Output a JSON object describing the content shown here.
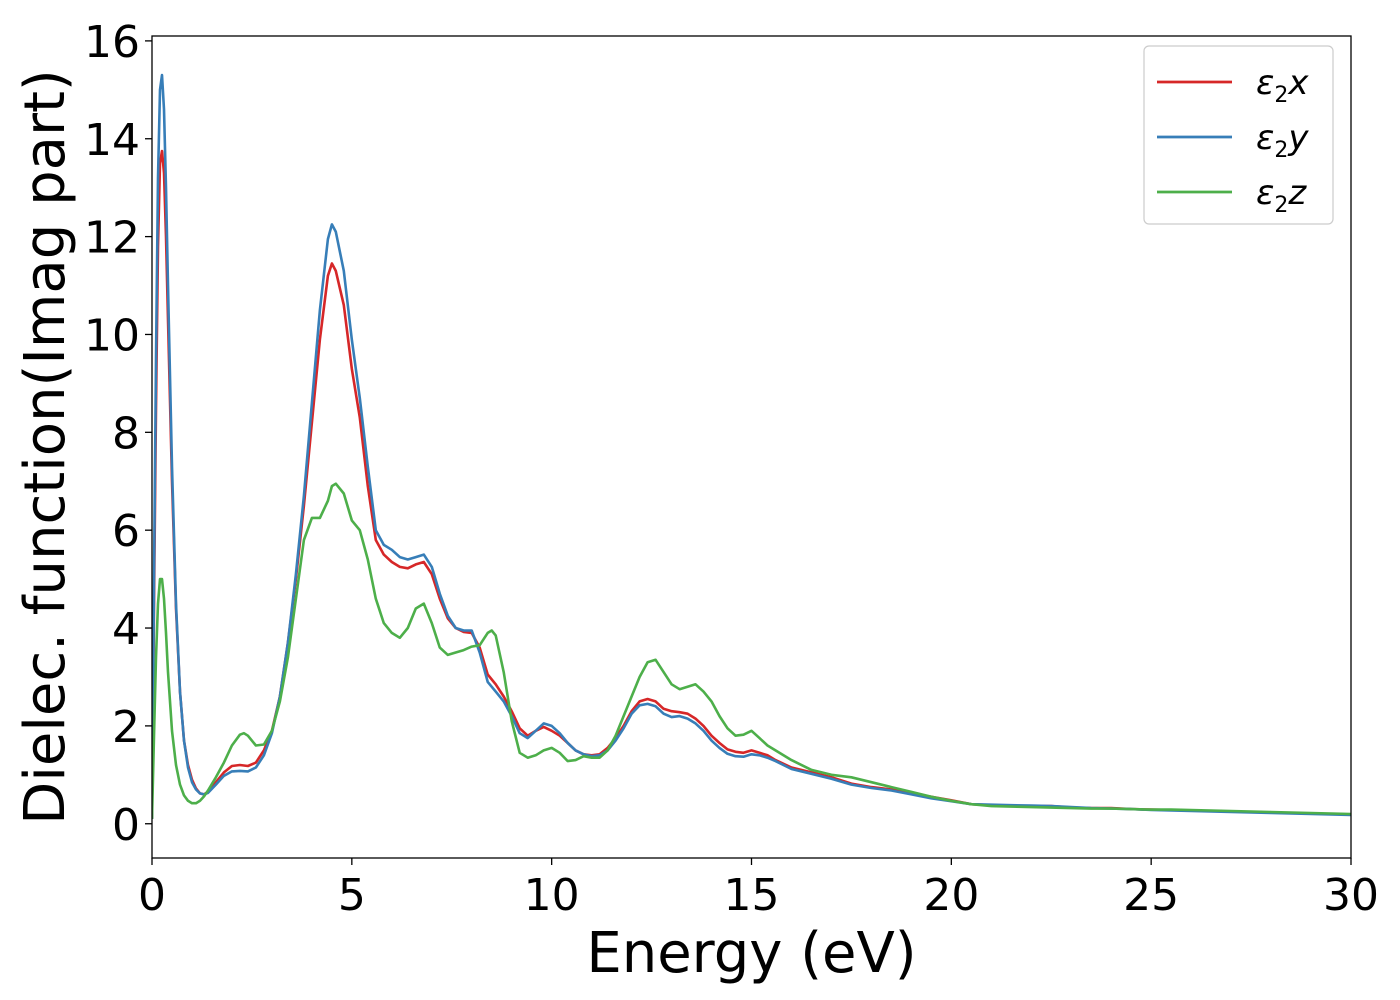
{
  "chart_data": {
    "type": "line",
    "title": "",
    "xlabel": "Energy (eV)",
    "ylabel": "Dielec. function(Imag part)",
    "xlim": [
      0,
      30
    ],
    "ylim": [
      -0.7,
      16.1
    ],
    "xticks": [
      0,
      5,
      10,
      15,
      20,
      25,
      30
    ],
    "yticks": [
      0,
      2,
      4,
      6,
      8,
      10,
      12,
      14,
      16
    ],
    "grid": false,
    "legend": "top-right",
    "series": [
      {
        "name": "ε2x",
        "name_base": "ε",
        "name_sub": "2",
        "name_tail": "x",
        "color": "#d62728",
        "x": [
          0,
          0.05,
          0.1,
          0.15,
          0.2,
          0.25,
          0.3,
          0.35,
          0.4,
          0.5,
          0.6,
          0.7,
          0.8,
          0.9,
          1.0,
          1.1,
          1.2,
          1.3,
          1.4,
          1.6,
          1.8,
          2.0,
          2.2,
          2.4,
          2.6,
          2.8,
          3.0,
          3.2,
          3.4,
          3.6,
          3.8,
          4.0,
          4.2,
          4.4,
          4.5,
          4.6,
          4.8,
          5.0,
          5.2,
          5.4,
          5.6,
          5.8,
          6.0,
          6.2,
          6.4,
          6.6,
          6.8,
          7.0,
          7.2,
          7.4,
          7.6,
          7.8,
          8.0,
          8.2,
          8.4,
          8.6,
          8.8,
          9.0,
          9.2,
          9.4,
          9.6,
          9.8,
          10.0,
          10.2,
          10.4,
          10.6,
          10.8,
          11.0,
          11.2,
          11.4,
          11.6,
          11.8,
          12.0,
          12.2,
          12.4,
          12.6,
          12.8,
          13.0,
          13.2,
          13.4,
          13.6,
          13.8,
          14.0,
          14.2,
          14.4,
          14.6,
          14.8,
          15.0,
          15.2,
          15.4,
          15.6,
          16.0,
          16.5,
          17.0,
          17.5,
          18.0,
          18.5,
          19.0,
          19.5,
          20.0,
          20.5,
          21.0,
          21.5,
          22.0,
          22.5,
          23.0,
          23.5,
          24.0,
          24.5,
          25.0,
          25.5,
          26.0,
          26.5,
          27.0,
          27.5,
          28.0,
          28.5,
          29.0,
          29.5,
          30.0
        ],
        "y": [
          0.1,
          4.5,
          8.5,
          11.8,
          13.5,
          13.75,
          13.3,
          12.0,
          10.3,
          7.0,
          4.4,
          2.7,
          1.7,
          1.2,
          0.9,
          0.72,
          0.62,
          0.6,
          0.65,
          0.85,
          1.05,
          1.18,
          1.2,
          1.18,
          1.25,
          1.5,
          1.9,
          2.6,
          3.7,
          5.0,
          6.5,
          8.2,
          9.9,
          11.2,
          11.45,
          11.3,
          10.6,
          9.3,
          8.3,
          6.9,
          5.8,
          5.5,
          5.35,
          5.25,
          5.22,
          5.3,
          5.35,
          5.1,
          4.6,
          4.2,
          4.0,
          3.92,
          3.9,
          3.6,
          3.05,
          2.85,
          2.6,
          2.3,
          1.95,
          1.8,
          1.9,
          1.98,
          1.9,
          1.8,
          1.65,
          1.5,
          1.42,
          1.4,
          1.42,
          1.55,
          1.75,
          2.0,
          2.3,
          2.5,
          2.55,
          2.5,
          2.35,
          2.3,
          2.28,
          2.25,
          2.15,
          2.0,
          1.8,
          1.65,
          1.52,
          1.47,
          1.45,
          1.5,
          1.45,
          1.4,
          1.3,
          1.15,
          1.05,
          0.95,
          0.82,
          0.75,
          0.7,
          0.62,
          0.55,
          0.48,
          0.4,
          0.38,
          0.37,
          0.36,
          0.36,
          0.33,
          0.32,
          0.32,
          0.3,
          0.29,
          0.28,
          0.27,
          0.26,
          0.25,
          0.24,
          0.23,
          0.22,
          0.21,
          0.2,
          0.19
        ]
      },
      {
        "name": "ε2y",
        "name_base": "ε",
        "name_sub": "2",
        "name_tail": "y",
        "color": "#377eb8",
        "x": [
          0,
          0.05,
          0.1,
          0.15,
          0.2,
          0.25,
          0.3,
          0.35,
          0.4,
          0.5,
          0.6,
          0.7,
          0.8,
          0.9,
          1.0,
          1.1,
          1.2,
          1.3,
          1.4,
          1.6,
          1.8,
          2.0,
          2.2,
          2.4,
          2.6,
          2.8,
          3.0,
          3.2,
          3.4,
          3.6,
          3.8,
          4.0,
          4.2,
          4.4,
          4.5,
          4.6,
          4.8,
          5.0,
          5.2,
          5.4,
          5.6,
          5.8,
          6.0,
          6.2,
          6.4,
          6.6,
          6.8,
          7.0,
          7.2,
          7.4,
          7.6,
          7.8,
          8.0,
          8.2,
          8.4,
          8.6,
          8.8,
          9.0,
          9.2,
          9.4,
          9.6,
          9.8,
          10.0,
          10.2,
          10.4,
          10.6,
          10.8,
          11.0,
          11.2,
          11.4,
          11.6,
          11.8,
          12.0,
          12.2,
          12.4,
          12.6,
          12.8,
          13.0,
          13.2,
          13.4,
          13.6,
          13.8,
          14.0,
          14.2,
          14.4,
          14.6,
          14.8,
          15.0,
          15.2,
          15.4,
          15.6,
          16.0,
          16.5,
          17.0,
          17.5,
          18.0,
          18.5,
          19.0,
          19.5,
          20.0,
          20.5,
          21.0,
          21.5,
          22.0,
          22.5,
          23.0,
          23.5,
          24.0,
          24.5,
          25.0,
          25.5,
          26.0,
          26.5,
          27.0,
          27.5,
          28.0,
          28.5,
          29.0,
          29.5,
          30.0
        ],
        "y": [
          0.1,
          5.0,
          9.5,
          13.2,
          15.0,
          15.3,
          14.6,
          13.0,
          11.0,
          7.3,
          4.5,
          2.7,
          1.7,
          1.15,
          0.85,
          0.7,
          0.62,
          0.6,
          0.63,
          0.8,
          0.98,
          1.07,
          1.08,
          1.07,
          1.15,
          1.4,
          1.85,
          2.6,
          3.7,
          5.1,
          6.7,
          8.6,
          10.5,
          11.95,
          12.25,
          12.1,
          11.3,
          9.9,
          8.7,
          7.3,
          6.0,
          5.7,
          5.6,
          5.45,
          5.4,
          5.45,
          5.5,
          5.25,
          4.7,
          4.25,
          4.0,
          3.95,
          3.95,
          3.5,
          2.9,
          2.7,
          2.5,
          2.2,
          1.85,
          1.75,
          1.9,
          2.05,
          2.0,
          1.85,
          1.65,
          1.5,
          1.42,
          1.38,
          1.4,
          1.5,
          1.7,
          1.95,
          2.25,
          2.42,
          2.45,
          2.4,
          2.25,
          2.18,
          2.2,
          2.15,
          2.05,
          1.9,
          1.7,
          1.55,
          1.43,
          1.38,
          1.37,
          1.42,
          1.4,
          1.35,
          1.28,
          1.12,
          1.02,
          0.92,
          0.8,
          0.73,
          0.68,
          0.6,
          0.52,
          0.46,
          0.4,
          0.39,
          0.38,
          0.37,
          0.36,
          0.34,
          0.32,
          0.31,
          0.3,
          0.28,
          0.27,
          0.26,
          0.25,
          0.24,
          0.23,
          0.22,
          0.21,
          0.2,
          0.19,
          0.18
        ]
      },
      {
        "name": "ε2z",
        "name_base": "ε",
        "name_sub": "2",
        "name_tail": "z",
        "color": "#4daf4a",
        "x": [
          0,
          0.05,
          0.1,
          0.15,
          0.2,
          0.25,
          0.3,
          0.35,
          0.4,
          0.5,
          0.6,
          0.7,
          0.8,
          0.9,
          1.0,
          1.1,
          1.2,
          1.3,
          1.4,
          1.6,
          1.8,
          2.0,
          2.2,
          2.3,
          2.4,
          2.6,
          2.8,
          3.0,
          3.2,
          3.4,
          3.6,
          3.8,
          4.0,
          4.2,
          4.4,
          4.5,
          4.6,
          4.8,
          5.0,
          5.2,
          5.4,
          5.6,
          5.8,
          6.0,
          6.2,
          6.4,
          6.6,
          6.8,
          7.0,
          7.2,
          7.4,
          7.6,
          7.8,
          8.0,
          8.2,
          8.4,
          8.5,
          8.6,
          8.8,
          9.0,
          9.2,
          9.4,
          9.6,
          9.8,
          10.0,
          10.2,
          10.4,
          10.6,
          10.8,
          11.0,
          11.2,
          11.4,
          11.6,
          11.8,
          12.0,
          12.2,
          12.4,
          12.6,
          12.8,
          13.0,
          13.2,
          13.4,
          13.6,
          13.8,
          14.0,
          14.2,
          14.4,
          14.6,
          14.8,
          15.0,
          15.2,
          15.4,
          15.6,
          16.0,
          16.5,
          17.0,
          17.5,
          18.0,
          18.5,
          19.0,
          19.5,
          20.0,
          20.5,
          21.0,
          21.5,
          22.0,
          22.5,
          23.0,
          23.5,
          24.0,
          24.5,
          25.0,
          25.5,
          26.0,
          26.5,
          27.0,
          27.5,
          28.0,
          28.5,
          29.0,
          29.5,
          30.0
        ],
        "y": [
          0.1,
          1.8,
          3.4,
          4.5,
          5.0,
          5.0,
          4.6,
          3.9,
          3.1,
          1.9,
          1.2,
          0.8,
          0.58,
          0.47,
          0.42,
          0.42,
          0.47,
          0.56,
          0.68,
          0.95,
          1.25,
          1.6,
          1.82,
          1.85,
          1.8,
          1.6,
          1.62,
          1.9,
          2.5,
          3.4,
          4.6,
          5.8,
          6.25,
          6.25,
          6.6,
          6.9,
          6.95,
          6.75,
          6.2,
          6.0,
          5.4,
          4.6,
          4.1,
          3.9,
          3.8,
          4.0,
          4.4,
          4.5,
          4.1,
          3.6,
          3.45,
          3.5,
          3.55,
          3.62,
          3.65,
          3.9,
          3.95,
          3.85,
          3.1,
          2.1,
          1.45,
          1.35,
          1.4,
          1.5,
          1.55,
          1.45,
          1.28,
          1.3,
          1.38,
          1.35,
          1.35,
          1.5,
          1.8,
          2.2,
          2.6,
          3.0,
          3.3,
          3.35,
          3.1,
          2.85,
          2.75,
          2.8,
          2.85,
          2.7,
          2.5,
          2.2,
          1.95,
          1.8,
          1.82,
          1.9,
          1.75,
          1.6,
          1.5,
          1.3,
          1.1,
          1.0,
          0.95,
          0.85,
          0.75,
          0.65,
          0.55,
          0.47,
          0.4,
          0.36,
          0.35,
          0.34,
          0.33,
          0.32,
          0.31,
          0.31,
          0.3,
          0.29,
          0.29,
          0.28,
          0.27,
          0.26,
          0.25,
          0.24,
          0.23,
          0.22,
          0.21,
          0.2
        ]
      }
    ]
  }
}
